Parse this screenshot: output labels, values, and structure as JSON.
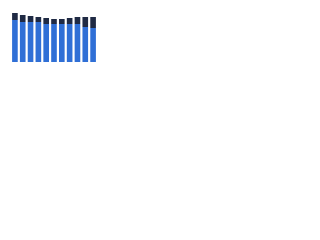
{
  "chart_data": {
    "type": "stacked-bar",
    "categories": [
      null,
      null,
      null,
      null,
      null,
      null,
      null,
      null,
      null,
      null,
      null
    ],
    "series": [
      {
        "color": "#2f6fd6",
        "values": [
          42,
          40,
          40,
          40,
          38,
          38,
          38,
          38,
          38,
          35,
          34
        ]
      },
      {
        "color": "#1f2a44",
        "values": [
          7,
          7,
          6,
          5,
          6,
          5,
          5,
          6,
          7,
          10,
          11
        ]
      }
    ],
    "ylim": [
      0,
      50
    ]
  }
}
